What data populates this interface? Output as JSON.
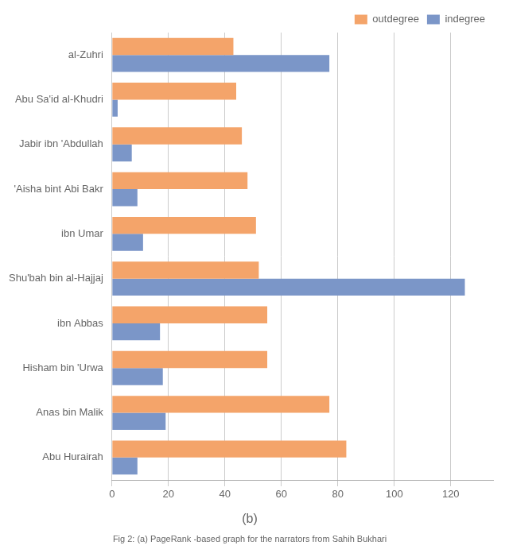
{
  "chart_data": {
    "type": "bar",
    "orientation": "horizontal",
    "title": "(b)",
    "subtitle": "Fig 2: (a) PageRank -based graph for the narrators from Sahih Bukhari",
    "categories": [
      "Abu Hurairah",
      "Anas bin Malik",
      "Hisham bin 'Urwa",
      "ibn Abbas",
      "Shu'bah bin al-Hajjaj",
      "ibn Umar",
      "'Aisha bint Abi Bakr",
      "Jabir ibn 'Abdullah",
      "Abu Sa'id al-Khudri",
      "al-Zuhri"
    ],
    "series": [
      {
        "name": "outdegree",
        "color": "#f4a46a",
        "values": [
          83,
          77,
          55,
          55,
          52,
          51,
          48,
          46,
          44,
          43
        ]
      },
      {
        "name": "indegree",
        "color": "#7b96c8",
        "values": [
          9,
          19,
          18,
          17,
          125,
          11,
          9,
          7,
          2,
          77
        ]
      }
    ],
    "xlim": [
      0,
      135
    ],
    "xticks": [
      0,
      20,
      40,
      60,
      80,
      100,
      120
    ],
    "grid": true,
    "legend": "top right"
  }
}
